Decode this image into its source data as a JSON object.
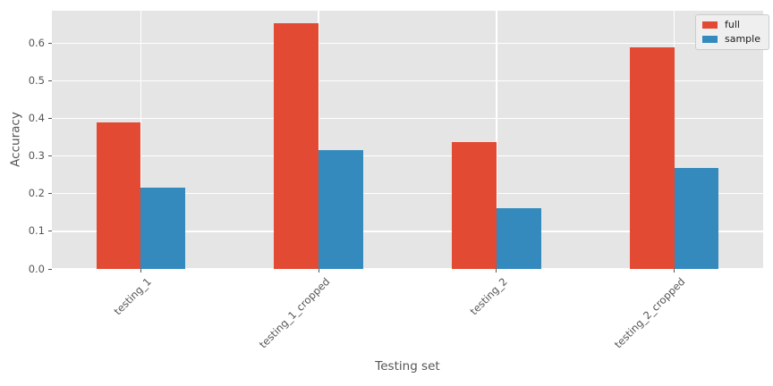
{
  "chart_data": {
    "type": "bar",
    "title": "",
    "xlabel": "Testing set",
    "ylabel": "Accuracy",
    "categories": [
      "testing_1",
      "testing_1_cropped",
      "testing_2",
      "testing_2_cropped"
    ],
    "series": [
      {
        "name": "full",
        "color": "#E24A33",
        "values": [
          0.389,
          0.653,
          0.337,
          0.588
        ]
      },
      {
        "name": "sample",
        "color": "#348ABD",
        "values": [
          0.215,
          0.315,
          0.161,
          0.268
        ]
      }
    ],
    "ylim": [
      0,
      0.686
    ],
    "yticks": [
      0.0,
      0.1,
      0.2,
      0.3,
      0.4,
      0.5,
      0.6
    ],
    "grid": true,
    "legend_position": "upper right",
    "bar_group_width": 0.5
  },
  "style": {
    "figure_bg": "#FFFFFF",
    "plot_bg": "#E5E5E5",
    "grid_color": "#FFFFFF",
    "tick_color": "#555555",
    "label_color": "#555555",
    "legend_bg": "#EFEFEF",
    "legend_border": "#CCCCCC",
    "legend_text": "#1A1A1A"
  }
}
